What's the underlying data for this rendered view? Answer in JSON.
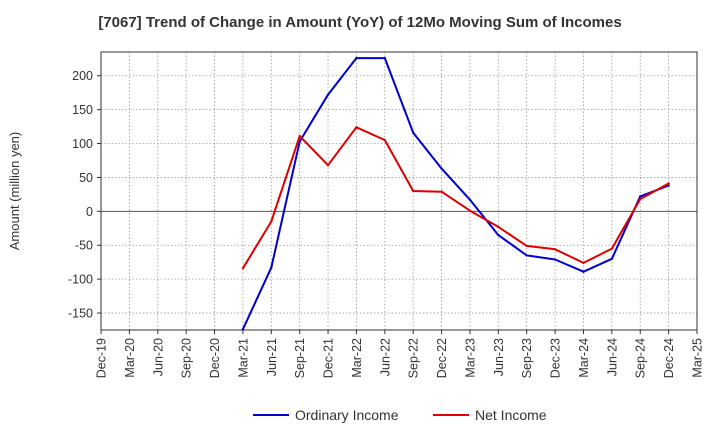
{
  "chart_data": {
    "type": "line",
    "title": "[7067]  Trend of Change in Amount (YoY) of 12Mo Moving Sum of Incomes",
    "xlabel": "",
    "ylabel": "Amount (million yen)",
    "categories": [
      "Dec-19",
      "Mar-20",
      "Jun-20",
      "Sep-20",
      "Dec-20",
      "Mar-21",
      "Jun-21",
      "Sep-21",
      "Dec-21",
      "Mar-22",
      "Jun-22",
      "Sep-22",
      "Dec-22",
      "Mar-23",
      "Jun-23",
      "Sep-23",
      "Dec-23",
      "Mar-24",
      "Jun-24",
      "Sep-24",
      "Dec-24",
      "Mar-25"
    ],
    "ylim": [
      -175,
      235
    ],
    "yticks": [
      -150,
      -100,
      -50,
      0,
      50,
      100,
      150,
      200
    ],
    "grid": true,
    "legend_position": "bottom-center",
    "series": [
      {
        "name": "Ordinary Income",
        "color": "#0000cc",
        "values": [
          null,
          null,
          null,
          null,
          null,
          -174,
          -83,
          103,
          172,
          226,
          226,
          116,
          63,
          17,
          -35,
          -65,
          -71,
          -89,
          -70,
          22,
          38,
          null
        ]
      },
      {
        "name": "Net Income",
        "color": "#dd0000",
        "values": [
          null,
          null,
          null,
          null,
          null,
          -84,
          -15,
          111,
          68,
          124,
          105,
          30,
          29,
          1,
          -23,
          -51,
          -56,
          -76,
          -55,
          18,
          41,
          null
        ]
      }
    ]
  }
}
